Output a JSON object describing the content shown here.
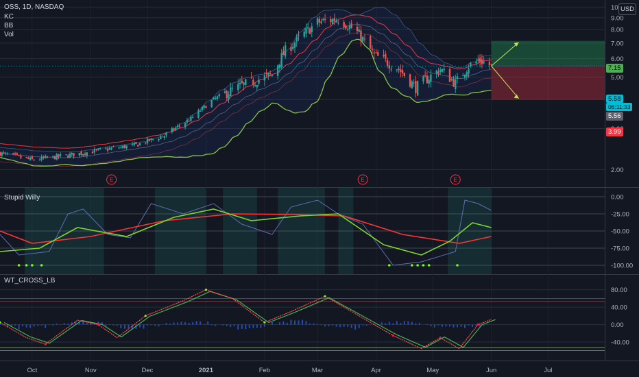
{
  "header": {
    "ticker_line": "OSS, 1D, NASDAQ",
    "indicators": [
      "KC",
      "BB",
      "Vol"
    ],
    "currency": "USD"
  },
  "price_tags": {
    "current_price": "5.58",
    "countdown": "06:11:33",
    "previous": "5.56",
    "target": "7.15",
    "stop": "3.99"
  },
  "colors": {
    "background": "#131722",
    "up": "#26a69a",
    "down": "#ef5350",
    "keltner": "#f23645",
    "bollinger": "#8bc34a",
    "profit_zone": "#1b5e20",
    "loss_zone": "#7f1d1d",
    "signal_green": "#76ff03",
    "signal_red": "#ff1744"
  },
  "chart_data": [
    {
      "type": "candlestick",
      "title": "OSS, 1D, NASDAQ",
      "y_scale": "log",
      "ylim": [
        1.75,
        10.3
      ],
      "y_ticks": [
        "10.00",
        "9.00",
        "8.00",
        "7.00",
        "6.00",
        "5.00",
        "4.00",
        "3.00",
        "2.00"
      ],
      "x_labels": [
        "Oct",
        "Nov",
        "Dec",
        "2021",
        "Feb",
        "Mar",
        "Apr",
        "May",
        "Jun",
        "Jul"
      ],
      "x_range": [
        "2020-09-14",
        "2021-07-31"
      ],
      "earnings_markers": [
        {
          "date": "2020-11-12",
          "label": "E"
        },
        {
          "date": "2021-03-25",
          "label": "E"
        },
        {
          "date": "2021-05-13",
          "label": "E"
        }
      ],
      "close_path": [
        [
          "2020-09-14",
          2.35
        ],
        [
          "2020-10-01",
          2.2
        ],
        [
          "2020-10-20",
          2.3
        ],
        [
          "2020-11-10",
          2.45
        ],
        [
          "2020-11-25",
          2.55
        ],
        [
          "2020-12-10",
          2.8
        ],
        [
          "2020-12-24",
          3.3
        ],
        [
          "2021-01-05",
          4.0
        ],
        [
          "2021-01-20",
          4.6
        ],
        [
          "2021-02-05",
          5.1
        ],
        [
          "2021-02-12",
          6.5
        ],
        [
          "2021-02-20",
          7.4
        ],
        [
          "2021-03-01",
          8.6
        ],
        [
          "2021-03-12",
          8.9
        ],
        [
          "2021-03-22",
          7.8
        ],
        [
          "2021-03-31",
          6.2
        ],
        [
          "2021-04-12",
          5.5
        ],
        [
          "2021-04-22",
          4.5
        ],
        [
          "2021-05-05",
          5.4
        ],
        [
          "2021-05-13",
          4.7
        ],
        [
          "2021-05-20",
          5.6
        ],
        [
          "2021-05-26",
          5.9
        ],
        [
          "2021-06-01",
          5.58
        ]
      ],
      "position": {
        "entry": 5.58,
        "target": 7.15,
        "stop": 3.99,
        "start": "2021-06-01",
        "end": "2021-06-16"
      }
    },
    {
      "type": "line",
      "title": "Stupid Willy",
      "ylim": [
        -105,
        5
      ],
      "y_ticks": [
        "0.00",
        "-25.00",
        "-50.00",
        "-75.00",
        "-100.00"
      ],
      "series": [
        {
          "color": "#5b6fb3",
          "points": [
            [
              "2020-09-14",
              -55
            ],
            [
              "2020-09-24",
              -85
            ],
            [
              "2020-10-10",
              -80
            ],
            [
              "2020-10-20",
              -25
            ],
            [
              "2020-10-28",
              -18
            ],
            [
              "2020-11-10",
              -55
            ],
            [
              "2020-11-22",
              -60
            ],
            [
              "2020-12-03",
              -10
            ],
            [
              "2020-12-20",
              -25
            ],
            [
              "2021-01-05",
              -10
            ],
            [
              "2021-01-20",
              -40
            ],
            [
              "2021-02-05",
              -55
            ],
            [
              "2021-02-15",
              -15
            ],
            [
              "2021-03-01",
              -5
            ],
            [
              "2021-03-12",
              -25
            ],
            [
              "2021-03-25",
              -40
            ],
            [
              "2021-04-10",
              -100
            ],
            [
              "2021-04-25",
              -95
            ],
            [
              "2021-05-13",
              -80
            ],
            [
              "2021-05-18",
              -5
            ],
            [
              "2021-05-25",
              -10
            ],
            [
              "2021-06-01",
              -20
            ]
          ]
        },
        {
          "color": "#ff3333",
          "points": [
            [
              "2020-09-14",
              -50
            ],
            [
              "2020-10-01",
              -68
            ],
            [
              "2020-11-01",
              -58
            ],
            [
              "2020-12-10",
              -35
            ],
            [
              "2021-01-15",
              -25
            ],
            [
              "2021-02-15",
              -26
            ],
            [
              "2021-03-15",
              -28
            ],
            [
              "2021-04-15",
              -55
            ],
            [
              "2021-05-15",
              -68
            ],
            [
              "2021-06-01",
              -58
            ]
          ]
        },
        {
          "color": "#7fd629",
          "points": [
            [
              "2020-09-14",
              -80
            ],
            [
              "2020-10-05",
              -75
            ],
            [
              "2020-10-25",
              -45
            ],
            [
              "2020-11-20",
              -58
            ],
            [
              "2020-12-15",
              -30
            ],
            [
              "2021-01-05",
              -18
            ],
            [
              "2021-01-25",
              -35
            ],
            [
              "2021-02-20",
              -28
            ],
            [
              "2021-03-12",
              -25
            ],
            [
              "2021-04-05",
              -70
            ],
            [
              "2021-04-25",
              -85
            ],
            [
              "2021-05-10",
              -65
            ],
            [
              "2021-05-22",
              -38
            ],
            [
              "2021-06-01",
              -45
            ]
          ]
        }
      ]
    },
    {
      "type": "line",
      "title": "WT_CROSS_LB",
      "ylim": [
        -70,
        100
      ],
      "y_ticks": [
        "80.00",
        "40.00",
        "0.00",
        "-40.00"
      ],
      "series": [
        {
          "color": "#ff5252",
          "points": [
            [
              "2020-09-14",
              5
            ],
            [
              "2020-09-28",
              -30
            ],
            [
              "2020-10-08",
              -45
            ],
            [
              "2020-10-25",
              10
            ],
            [
              "2020-11-05",
              0
            ],
            [
              "2020-11-15",
              -30
            ],
            [
              "2020-11-30",
              20
            ],
            [
              "2020-12-20",
              55
            ],
            [
              "2021-01-01",
              80
            ],
            [
              "2021-01-15",
              60
            ],
            [
              "2021-02-01",
              5
            ],
            [
              "2021-02-15",
              30
            ],
            [
              "2021-03-05",
              65
            ],
            [
              "2021-03-25",
              15
            ],
            [
              "2021-04-10",
              -25
            ],
            [
              "2021-04-25",
              -55
            ],
            [
              "2021-05-05",
              -30
            ],
            [
              "2021-05-15",
              -55
            ],
            [
              "2021-05-25",
              0
            ],
            [
              "2021-06-01",
              12
            ]
          ]
        }
      ]
    }
  ]
}
